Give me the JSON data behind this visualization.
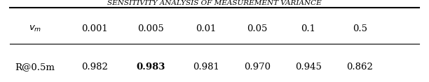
{
  "title": "SENSITIVITY ANALYSIS OF MEASUREMENT VARIANCE",
  "columns": [
    "v_m",
    "0.001",
    "0.005",
    "0.01",
    "0.05",
    "0.1",
    "0.5"
  ],
  "row_label": "R@0.5m",
  "row_values": [
    "0.982",
    "0.983",
    "0.981",
    "0.970",
    "0.945",
    "0.862"
  ],
  "bold_index": 1,
  "background_color": "#ffffff",
  "title_fontsize": 7.5,
  "table_fontsize": 9.5
}
